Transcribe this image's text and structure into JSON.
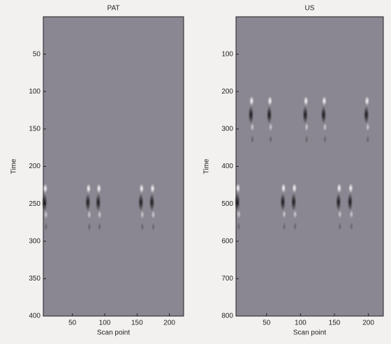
{
  "chart_data": [
    {
      "type": "heatmap",
      "title": "PAT",
      "x_label": "Scan point",
      "y_label": "Time",
      "xlim": [
        5,
        222
      ],
      "xticks": [
        50,
        100,
        150,
        200
      ],
      "ylim": [
        0,
        400
      ],
      "yticks": [
        50,
        100,
        150,
        200,
        250,
        300,
        350,
        400
      ],
      "y_reversed": true,
      "background": "#8b8792",
      "signals": {
        "x": [
          8,
          75,
          91,
          157,
          174
        ],
        "time": [
          248,
          248,
          248,
          248,
          248
        ]
      }
    },
    {
      "type": "heatmap",
      "title": "US",
      "x_label": "Scan point",
      "y_label": "Time",
      "xlim": [
        5,
        222
      ],
      "xticks": [
        50,
        100,
        150,
        200
      ],
      "ylim": [
        0,
        800
      ],
      "yticks": [
        100,
        200,
        300,
        400,
        500,
        600,
        700,
        800
      ],
      "y_reversed": true,
      "background": "#8b8792",
      "signals": {
        "x": [
          28,
          55,
          108,
          135,
          198,
          8,
          75,
          91,
          157,
          174
        ],
        "time": [
          262,
          262,
          262,
          262,
          262,
          495,
          495,
          495,
          495,
          495
        ]
      }
    }
  ]
}
